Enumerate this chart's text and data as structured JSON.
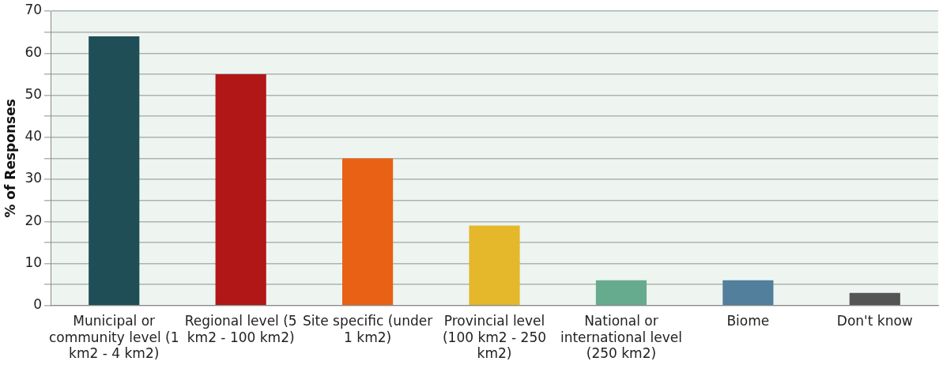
{
  "chart_data": {
    "type": "bar",
    "ylabel": "% of Responses",
    "categories": [
      "Municipal or community level (1 km2 - 4 km2)",
      "Regional level (5 km2 - 100 km2)",
      "Site specific (under 1 km2)",
      "Provincial level (100 km2 - 250 km2)",
      "National or international level (250 km2)",
      "Biome",
      "Don't know"
    ],
    "values": [
      64,
      55,
      35,
      19,
      6,
      6,
      3
    ],
    "colors": [
      "#1f4e56",
      "#b01716",
      "#e96114",
      "#e5b72a",
      "#67ab8f",
      "#527f9b",
      "#545454"
    ],
    "ylim": [
      0,
      70
    ],
    "yticks": [
      0,
      {
        "value": 5,
        "label": null
      },
      10,
      {
        "value": 15,
        "label": null
      },
      20,
      {
        "value": 25,
        "label": null
      },
      30,
      {
        "value": 35,
        "label": null
      },
      40,
      {
        "value": 45,
        "label": null
      },
      50,
      {
        "value": 55,
        "label": null
      },
      60,
      {
        "value": 65,
        "label": null
      },
      70
    ],
    "grid": true
  }
}
